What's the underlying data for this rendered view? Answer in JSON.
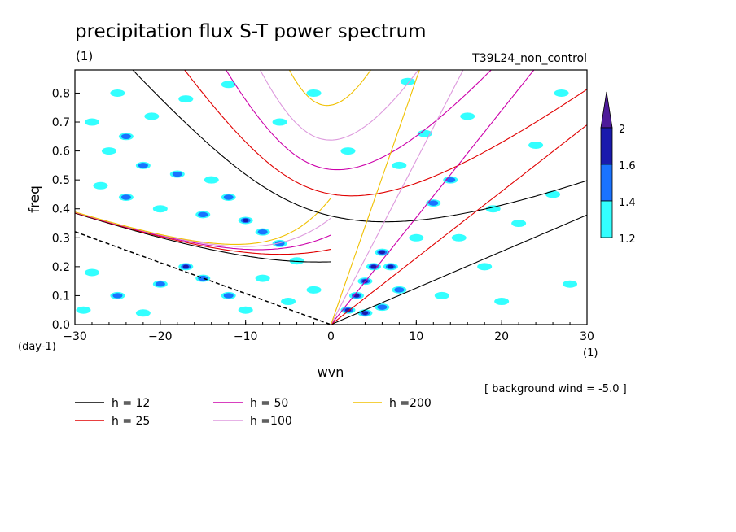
{
  "chart_data": {
    "type": "heatmap",
    "title": "precipitation flux S-T power spectrum",
    "subtitle_left": "(1)",
    "subtitle_right": "T39L24_non_control",
    "xlabel": "wvn",
    "ylabel": "freq",
    "x_unit": "(1)",
    "y_unit": "(day-1)",
    "xlim": [
      -30,
      30
    ],
    "ylim": [
      0,
      0.88
    ],
    "x_ticks": [
      -30,
      -20,
      -10,
      0,
      10,
      20,
      30
    ],
    "y_ticks": [
      0.0,
      0.1,
      0.2,
      0.3,
      0.4,
      0.5,
      0.6,
      0.7,
      0.8
    ],
    "colorbar": {
      "levels": [
        1.2,
        1.4,
        1.6,
        2
      ],
      "colors": [
        "#33ffff",
        "#1a73ff",
        "#1a1aad",
        "#4d1a99"
      ],
      "extend": "max"
    },
    "background_wind_label": "[ background wind = -5.0 ]",
    "dispersion_legend": [
      {
        "label": "h = 12",
        "color": "#000000"
      },
      {
        "label": "h = 25",
        "color": "#e00000"
      },
      {
        "label": "h = 50",
        "color": "#cc00aa"
      },
      {
        "label": "h =100",
        "color": "#dd99dd"
      },
      {
        "label": "h =200",
        "color": "#f0c000"
      }
    ],
    "equivalent_depths_m": [
      12,
      25,
      50,
      100,
      200
    ],
    "background_wind": -5.0,
    "power_blobs": [
      {
        "x": -28,
        "y": 0.7,
        "v": 1.3
      },
      {
        "x": -24,
        "y": 0.65,
        "v": 1.5
      },
      {
        "x": -21,
        "y": 0.72,
        "v": 1.3
      },
      {
        "x": -26,
        "y": 0.6,
        "v": 1.3
      },
      {
        "x": -22,
        "y": 0.55,
        "v": 1.4
      },
      {
        "x": -18,
        "y": 0.52,
        "v": 1.5
      },
      {
        "x": -27,
        "y": 0.48,
        "v": 1.3
      },
      {
        "x": -24,
        "y": 0.44,
        "v": 1.4
      },
      {
        "x": -20,
        "y": 0.4,
        "v": 1.3
      },
      {
        "x": -15,
        "y": 0.38,
        "v": 1.5
      },
      {
        "x": -10,
        "y": 0.36,
        "v": 1.6
      },
      {
        "x": -8,
        "y": 0.32,
        "v": 1.4
      },
      {
        "x": -12,
        "y": 0.44,
        "v": 1.4
      },
      {
        "x": -14,
        "y": 0.5,
        "v": 1.3
      },
      {
        "x": -6,
        "y": 0.28,
        "v": 1.5
      },
      {
        "x": -4,
        "y": 0.22,
        "v": 1.3
      },
      {
        "x": -25,
        "y": 0.8,
        "v": 1.3
      },
      {
        "x": -17,
        "y": 0.78,
        "v": 1.3
      },
      {
        "x": -12,
        "y": 0.83,
        "v": 1.3
      },
      {
        "x": -6,
        "y": 0.7,
        "v": 1.3
      },
      {
        "x": -2,
        "y": 0.8,
        "v": 1.3
      },
      {
        "x": -28,
        "y": 0.18,
        "v": 1.3
      },
      {
        "x": -25,
        "y": 0.1,
        "v": 1.4
      },
      {
        "x": -20,
        "y": 0.14,
        "v": 1.5
      },
      {
        "x": -17,
        "y": 0.2,
        "v": 1.6
      },
      {
        "x": -15,
        "y": 0.16,
        "v": 1.4
      },
      {
        "x": -12,
        "y": 0.1,
        "v": 1.4
      },
      {
        "x": -10,
        "y": 0.05,
        "v": 1.3
      },
      {
        "x": -8,
        "y": 0.16,
        "v": 1.3
      },
      {
        "x": -22,
        "y": 0.04,
        "v": 1.3
      },
      {
        "x": -29,
        "y": 0.05,
        "v": 1.3
      },
      {
        "x": -5,
        "y": 0.08,
        "v": 1.3
      },
      {
        "x": -2,
        "y": 0.12,
        "v": 1.3
      },
      {
        "x": 2,
        "y": 0.05,
        "v": 1.8
      },
      {
        "x": 3,
        "y": 0.1,
        "v": 1.9
      },
      {
        "x": 4,
        "y": 0.15,
        "v": 1.8
      },
      {
        "x": 5,
        "y": 0.2,
        "v": 1.8
      },
      {
        "x": 6,
        "y": 0.25,
        "v": 1.7
      },
      {
        "x": 7,
        "y": 0.2,
        "v": 1.6
      },
      {
        "x": 4,
        "y": 0.04,
        "v": 1.8
      },
      {
        "x": 6,
        "y": 0.06,
        "v": 1.5
      },
      {
        "x": 8,
        "y": 0.12,
        "v": 1.4
      },
      {
        "x": 10,
        "y": 0.3,
        "v": 1.3
      },
      {
        "x": 12,
        "y": 0.42,
        "v": 1.5
      },
      {
        "x": 14,
        "y": 0.5,
        "v": 1.4
      },
      {
        "x": 13,
        "y": 0.1,
        "v": 1.3
      },
      {
        "x": 18,
        "y": 0.2,
        "v": 1.3
      },
      {
        "x": 20,
        "y": 0.08,
        "v": 1.3
      },
      {
        "x": 22,
        "y": 0.35,
        "v": 1.3
      },
      {
        "x": 24,
        "y": 0.62,
        "v": 1.3
      },
      {
        "x": 26,
        "y": 0.45,
        "v": 1.3
      },
      {
        "x": 28,
        "y": 0.14,
        "v": 1.3
      },
      {
        "x": 9,
        "y": 0.84,
        "v": 1.3
      },
      {
        "x": 2,
        "y": 0.6,
        "v": 1.3
      },
      {
        "x": 8,
        "y": 0.55,
        "v": 1.3
      },
      {
        "x": 16,
        "y": 0.72,
        "v": 1.3
      },
      {
        "x": 19,
        "y": 0.4,
        "v": 1.3
      },
      {
        "x": 15,
        "y": 0.3,
        "v": 1.3
      },
      {
        "x": 27,
        "y": 0.8,
        "v": 1.3
      },
      {
        "x": 11,
        "y": 0.66,
        "v": 1.3
      }
    ]
  }
}
